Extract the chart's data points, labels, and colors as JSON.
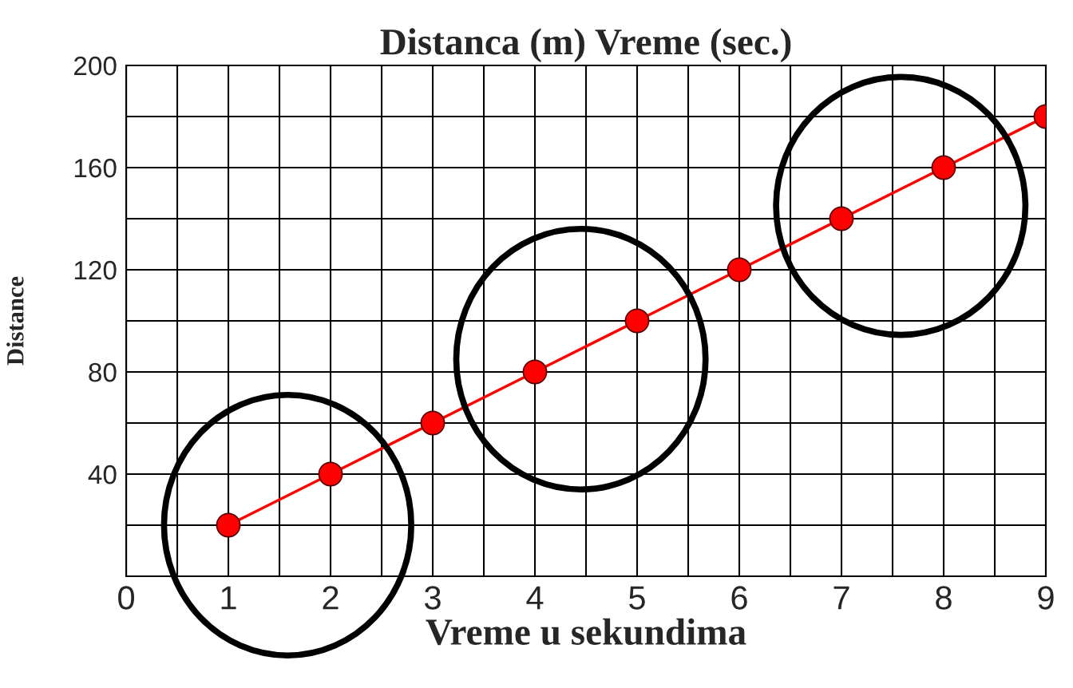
{
  "chart_data": {
    "type": "line",
    "title": "Distanca (m) Vreme (sec.)",
    "xlabel": "Vreme u sekundima",
    "ylabel": "Distance",
    "x": [
      1,
      2,
      3,
      4,
      5,
      6,
      7,
      8,
      9
    ],
    "series": [
      {
        "color": "#ff0000",
        "values": [
          20,
          40,
          60,
          80,
          100,
          120,
          140,
          160,
          180
        ]
      }
    ],
    "marker": "circle",
    "line_style": "solid",
    "grid": true,
    "xlim": [
      0,
      9
    ],
    "ylim": [
      0,
      200
    ],
    "xticks": [
      0,
      {
        "value": 0.5,
        "label": null
      },
      1,
      {
        "value": 1.5,
        "label": null
      },
      2,
      {
        "value": 2.5,
        "label": null
      },
      3,
      {
        "value": 3.5,
        "label": null
      },
      4,
      {
        "value": 4.5,
        "label": null
      },
      5,
      {
        "value": 5.5,
        "label": null
      },
      6,
      {
        "value": 6.5,
        "label": null
      },
      7,
      {
        "value": 7.5,
        "label": null
      },
      8,
      {
        "value": 8.5,
        "label": null
      },
      9
    ],
    "yticks": [
      {
        "value": 20,
        "label": null
      },
      40,
      {
        "value": 60,
        "label": null
      },
      80,
      {
        "value": 100,
        "label": null
      },
      120,
      {
        "value": 140,
        "label": null
      },
      160,
      {
        "value": 180,
        "label": null
      },
      200
    ]
  }
}
